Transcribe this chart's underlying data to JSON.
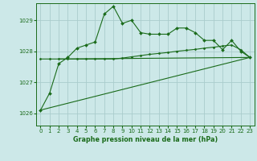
{
  "title": "Graphe pression niveau de la mer (hPa)",
  "background_color": "#cce8e8",
  "grid_color": "#aacccc",
  "line_color": "#1a6b1a",
  "xlim": [
    -0.5,
    23.5
  ],
  "ylim": [
    1025.6,
    1029.55
  ],
  "yticks": [
    1026,
    1027,
    1028,
    1029
  ],
  "xticks": [
    0,
    1,
    2,
    3,
    4,
    5,
    6,
    7,
    8,
    9,
    10,
    11,
    12,
    13,
    14,
    15,
    16,
    17,
    18,
    19,
    20,
    21,
    22,
    23
  ],
  "series1_x": [
    0,
    1,
    2,
    3,
    4,
    5,
    6,
    7,
    8,
    9,
    10,
    11,
    12,
    13,
    14,
    15,
    16,
    17,
    18,
    19,
    20,
    21,
    22,
    23
  ],
  "series1_y": [
    1026.1,
    1026.65,
    1027.6,
    1027.8,
    1028.1,
    1028.2,
    1028.3,
    1029.2,
    1029.45,
    1028.9,
    1029.0,
    1028.6,
    1028.55,
    1028.55,
    1028.55,
    1028.75,
    1028.75,
    1028.6,
    1028.35,
    1028.35,
    1028.05,
    1028.35,
    1028.0,
    1027.8
  ],
  "series2_x": [
    0,
    1,
    2,
    3,
    4,
    5,
    6,
    7,
    8,
    9,
    10,
    11,
    12,
    13,
    14,
    15,
    16,
    17,
    18,
    19,
    20,
    21,
    22,
    23
  ],
  "series2_y": [
    1027.75,
    1027.75,
    1027.75,
    1027.75,
    1027.75,
    1027.75,
    1027.75,
    1027.75,
    1027.75,
    1027.78,
    1027.82,
    1027.86,
    1027.9,
    1027.93,
    1027.96,
    1028.0,
    1028.03,
    1028.06,
    1028.1,
    1028.13,
    1028.17,
    1028.2,
    1028.05,
    1027.8
  ],
  "series3_x": [
    2,
    3,
    23
  ],
  "series3_y": [
    1027.75,
    1027.75,
    1027.8
  ],
  "series4_x": [
    0,
    23
  ],
  "series4_y": [
    1026.1,
    1027.8
  ]
}
